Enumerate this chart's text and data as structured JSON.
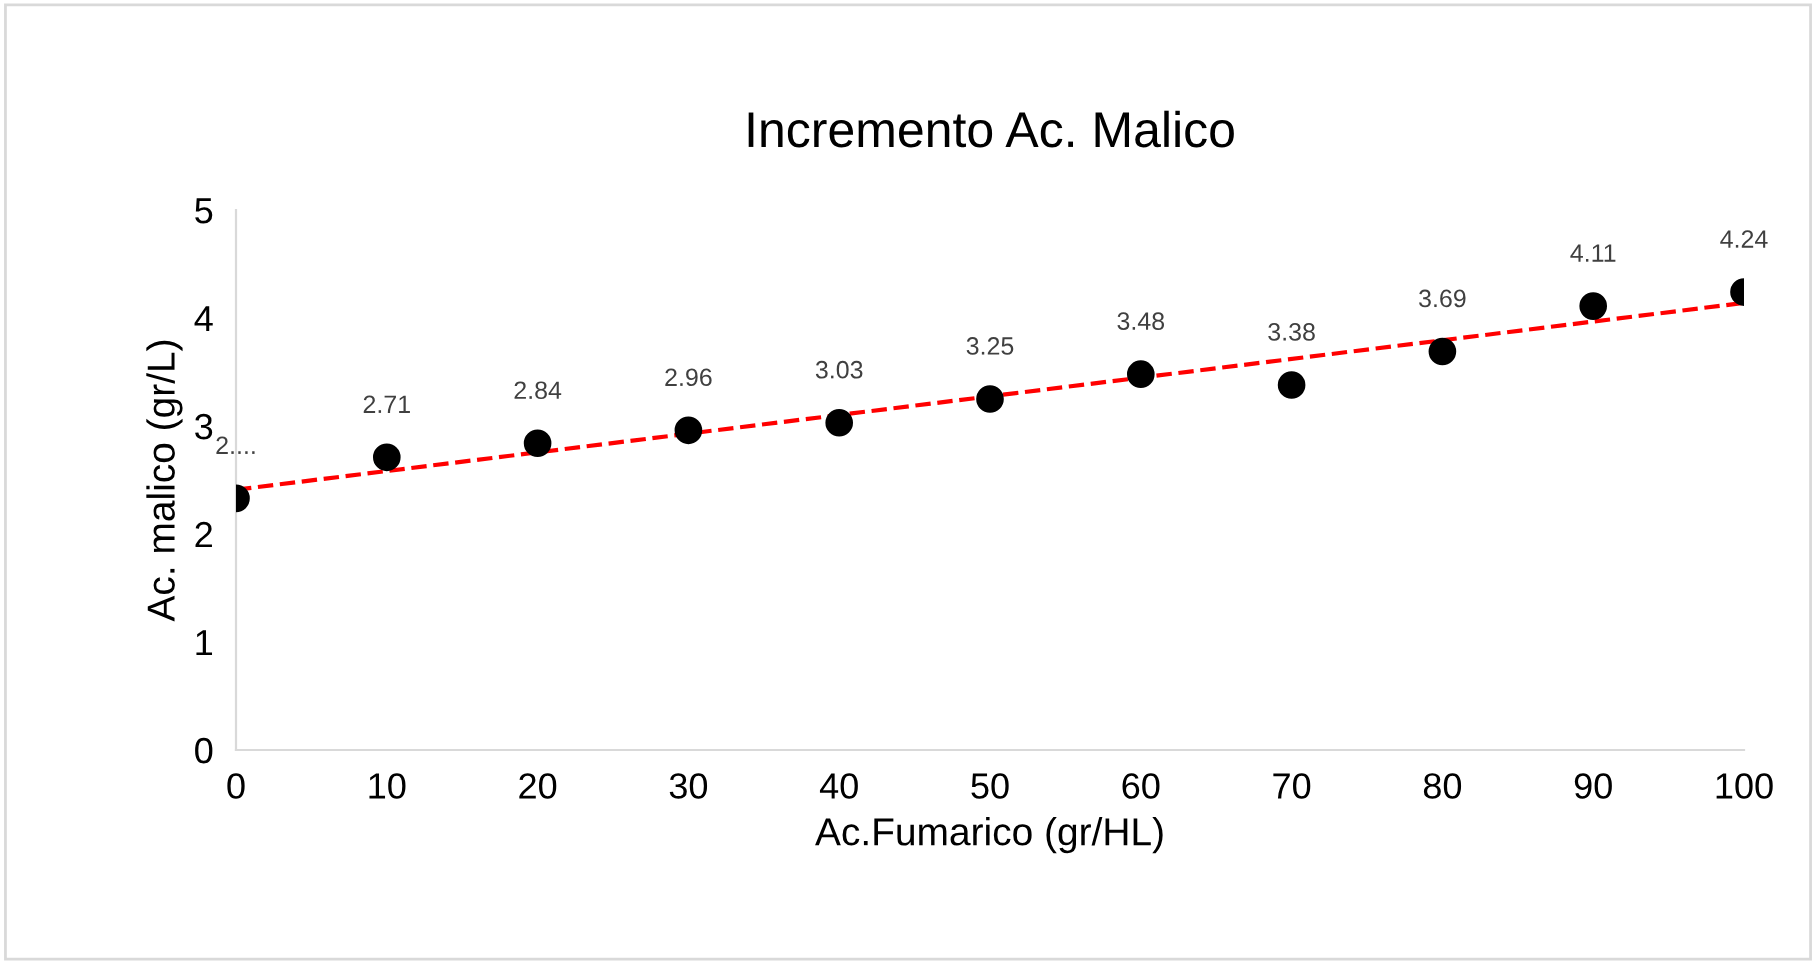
{
  "chart_data": {
    "type": "scatter",
    "title": "Incremento Ac. Malico",
    "xlabel": "Ac.Fumarico (gr/HL)",
    "ylabel": "Ac. malico (gr/L)",
    "x": [
      0,
      10,
      20,
      30,
      40,
      50,
      60,
      70,
      80,
      90,
      100
    ],
    "series": [
      {
        "color": "#000000",
        "marker": "circle",
        "values": [
          2.33,
          2.71,
          2.84,
          2.96,
          3.03,
          3.25,
          3.48,
          3.38,
          3.69,
          4.11,
          4.24
        ],
        "value_labels": [
          "2....",
          "2.71",
          "2.84",
          "2.96",
          "3.03",
          "3.25",
          "3.48",
          "3.38",
          "3.69",
          "4.11",
          "4.24"
        ]
      },
      {
        "type": "line",
        "color": "#ff0000",
        "line_style": "dashed",
        "marker": "none",
        "x": [
          0,
          100
        ],
        "values": [
          2.41,
          4.14
        ]
      }
    ],
    "xlim": [
      0,
      100
    ],
    "ylim": [
      0,
      5
    ],
    "xticks": [
      0,
      10,
      20,
      30,
      40,
      50,
      60,
      70,
      80,
      90,
      100
    ],
    "yticks": [
      0,
      1,
      2,
      3,
      4,
      5
    ],
    "grid": false,
    "legend": false
  }
}
